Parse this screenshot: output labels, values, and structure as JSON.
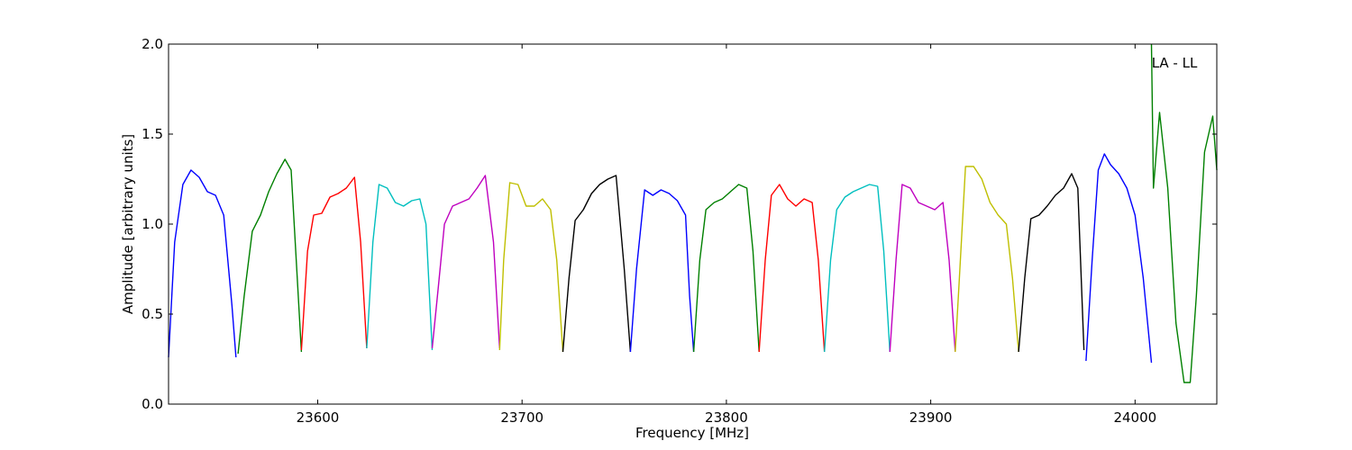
{
  "chart_data": {
    "type": "line",
    "title": "",
    "xlabel": "Frequency [MHz]",
    "ylabel": "Amplitude [arbitrary units]",
    "xlim": [
      23527,
      24040
    ],
    "ylim": [
      0.0,
      2.0
    ],
    "xticks": [
      23600,
      23700,
      23800,
      23900,
      24000
    ],
    "xtick_labels": [
      "23600",
      "23700",
      "23800",
      "23900",
      "24000"
    ],
    "yticks": [
      0.0,
      0.5,
      1.0,
      1.5,
      2.0
    ],
    "ytick_labels": [
      "0.0",
      "0.5",
      "1.0",
      "1.5",
      "2.0"
    ],
    "grid": false,
    "annotation": "LA - LL",
    "series": [
      {
        "color": "#0000ff",
        "x": [
          23527,
          23530,
          23534,
          23538,
          23542,
          23546,
          23550,
          23554,
          23558,
          23560
        ],
        "y": [
          0.26,
          0.9,
          1.22,
          1.3,
          1.26,
          1.18,
          1.16,
          1.05,
          0.55,
          0.26
        ]
      },
      {
        "color": "#008000",
        "x": [
          23561,
          23564,
          23568,
          23572,
          23576,
          23580,
          23584,
          23587,
          23590,
          23592
        ],
        "y": [
          0.28,
          0.6,
          0.96,
          1.05,
          1.18,
          1.28,
          1.36,
          1.3,
          0.7,
          0.29
        ]
      },
      {
        "color": "#ff0000",
        "x": [
          23592,
          23595,
          23598,
          23602,
          23606,
          23610,
          23614,
          23618,
          23621,
          23624
        ],
        "y": [
          0.3,
          0.85,
          1.05,
          1.06,
          1.15,
          1.17,
          1.2,
          1.26,
          0.9,
          0.31
        ]
      },
      {
        "color": "#00bfbf",
        "x": [
          23624,
          23627,
          23630,
          23634,
          23638,
          23642,
          23646,
          23650,
          23653,
          23656
        ],
        "y": [
          0.31,
          0.9,
          1.22,
          1.2,
          1.12,
          1.1,
          1.13,
          1.14,
          1.0,
          0.3
        ]
      },
      {
        "color": "#bf00bf",
        "x": [
          23656,
          23659,
          23662,
          23666,
          23670,
          23674,
          23678,
          23682,
          23686,
          23689
        ],
        "y": [
          0.31,
          0.65,
          1.0,
          1.1,
          1.12,
          1.14,
          1.2,
          1.27,
          0.9,
          0.31
        ]
      },
      {
        "color": "#bfbf00",
        "x": [
          23689,
          23691,
          23694,
          23698,
          23702,
          23706,
          23710,
          23714,
          23717,
          23720
        ],
        "y": [
          0.3,
          0.8,
          1.23,
          1.22,
          1.1,
          1.1,
          1.14,
          1.08,
          0.8,
          0.29
        ]
      },
      {
        "color": "#000000",
        "x": [
          23720,
          23723,
          23726,
          23730,
          23734,
          23738,
          23742,
          23746,
          23750,
          23753
        ],
        "y": [
          0.29,
          0.7,
          1.02,
          1.08,
          1.17,
          1.22,
          1.25,
          1.27,
          0.75,
          0.29
        ]
      },
      {
        "color": "#0000ff",
        "x": [
          23753,
          23756,
          23760,
          23764,
          23768,
          23772,
          23776,
          23780,
          23782,
          23784
        ],
        "y": [
          0.29,
          0.75,
          1.19,
          1.16,
          1.19,
          1.17,
          1.13,
          1.05,
          0.6,
          0.29
        ]
      },
      {
        "color": "#008000",
        "x": [
          23784,
          23787,
          23790,
          23794,
          23798,
          23802,
          23806,
          23810,
          23813,
          23816
        ],
        "y": [
          0.29,
          0.8,
          1.08,
          1.12,
          1.14,
          1.18,
          1.22,
          1.2,
          0.85,
          0.29
        ]
      },
      {
        "color": "#ff0000",
        "x": [
          23816,
          23819,
          23822,
          23826,
          23830,
          23834,
          23838,
          23842,
          23845,
          23848
        ],
        "y": [
          0.29,
          0.8,
          1.16,
          1.22,
          1.14,
          1.1,
          1.14,
          1.12,
          0.8,
          0.29
        ]
      },
      {
        "color": "#00bfbf",
        "x": [
          23848,
          23851,
          23854,
          23858,
          23862,
          23866,
          23870,
          23874,
          23877,
          23880
        ],
        "y": [
          0.29,
          0.8,
          1.08,
          1.15,
          1.18,
          1.2,
          1.22,
          1.21,
          0.85,
          0.29
        ]
      },
      {
        "color": "#bf00bf",
        "x": [
          23880,
          23883,
          23886,
          23890,
          23894,
          23898,
          23902,
          23906,
          23909,
          23912
        ],
        "y": [
          0.29,
          0.8,
          1.22,
          1.2,
          1.12,
          1.1,
          1.08,
          1.12,
          0.8,
          0.29
        ]
      },
      {
        "color": "#bfbf00",
        "x": [
          23912,
          23914,
          23917,
          23921,
          23925,
          23929,
          23933,
          23937,
          23940,
          23943
        ],
        "y": [
          0.29,
          0.7,
          1.32,
          1.32,
          1.25,
          1.12,
          1.05,
          1.0,
          0.7,
          0.29
        ]
      },
      {
        "color": "#000000",
        "x": [
          23943,
          23946,
          23949,
          23953,
          23957,
          23961,
          23965,
          23969,
          23972,
          23975
        ],
        "y": [
          0.29,
          0.7,
          1.03,
          1.05,
          1.1,
          1.16,
          1.2,
          1.28,
          1.2,
          0.3
        ]
      },
      {
        "color": "#0000ff",
        "x": [
          23976,
          23979,
          23982,
          23985,
          23988,
          23992,
          23996,
          24000,
          24004,
          24008
        ],
        "y": [
          0.24,
          0.8,
          1.3,
          1.39,
          1.33,
          1.28,
          1.2,
          1.05,
          0.7,
          0.23
        ]
      },
      {
        "color": "#008000",
        "x": [
          24008,
          24009,
          24012,
          24016,
          24020,
          24024,
          24027,
          24030,
          24034,
          24038,
          24040
        ],
        "y": [
          2.0,
          1.2,
          1.62,
          1.2,
          0.45,
          0.12,
          0.12,
          0.6,
          1.4,
          1.6,
          1.3
        ]
      }
    ]
  }
}
